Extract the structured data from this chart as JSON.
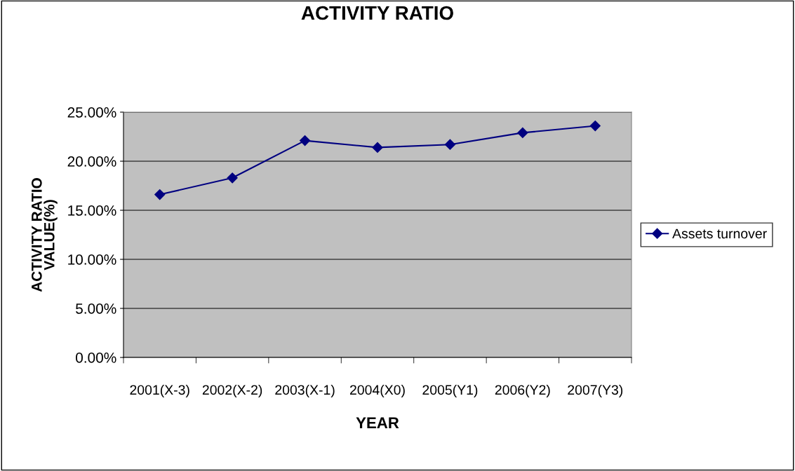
{
  "chart_data": {
    "type": "line",
    "title": "ACTIVITY RATIO",
    "xlabel": "YEAR",
    "ylabel": "ACTIVITY RATIO\nVALUE(%)",
    "categories": [
      "2001(X-3)",
      "2002(X-2)",
      "2003(X-1)",
      "2004(X0)",
      "2005(Y1)",
      "2006(Y2)",
      "2007(Y3)"
    ],
    "series": [
      {
        "name": "Assets turnover",
        "color": "#000080",
        "values": [
          16.6,
          18.3,
          22.1,
          21.4,
          21.7,
          22.9,
          23.6
        ]
      }
    ],
    "ylim": [
      0,
      25
    ],
    "yticks": [
      {
        "value": 0,
        "label": "0.00%"
      },
      {
        "value": 5,
        "label": "5.00%"
      },
      {
        "value": 10,
        "label": "10.00%"
      },
      {
        "value": 15,
        "label": "15.00%"
      },
      {
        "value": 20,
        "label": "20.00%"
      },
      {
        "value": 25,
        "label": "25.00%"
      }
    ],
    "grid": "y",
    "legend": "right",
    "marker": "diamond",
    "line_style": "solid"
  }
}
